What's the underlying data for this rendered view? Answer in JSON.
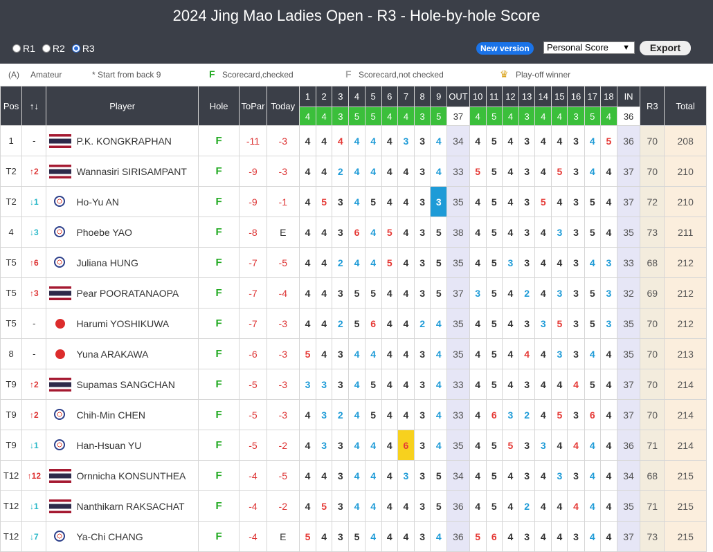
{
  "title": "2024 Jing Mao Ladies Open - R3 - Hole-by-hole Score",
  "rounds": [
    "R1",
    "R2",
    "R3"
  ],
  "selected_round": "R3",
  "new_version": "New version",
  "view_select": "Personal Score",
  "export": "Export",
  "legend": {
    "amateur_code": "(A)",
    "amateur": "Amateur",
    "back9": "* Start from back 9",
    "checked_mark": "F",
    "checked": "Scorecard,checked",
    "unchecked_mark": "F",
    "unchecked": "Scorecard,not checked",
    "playoff": "Play-off winner"
  },
  "page_size": "300s",
  "headers": {
    "pos": "Pos",
    "move": "↑↓",
    "player": "Player",
    "hole": "Hole",
    "topar": "ToPar",
    "today": "Today",
    "out": "OUT",
    "in": "IN",
    "r3": "R3",
    "total": "Total"
  },
  "holes": [
    "1",
    "2",
    "3",
    "4",
    "5",
    "6",
    "7",
    "8",
    "9",
    "10",
    "11",
    "12",
    "13",
    "14",
    "15",
    "16",
    "17",
    "18"
  ],
  "pars": [
    "4",
    "4",
    "3",
    "5",
    "5",
    "4",
    "4",
    "3",
    "5",
    "4",
    "5",
    "4",
    "3",
    "4",
    "4",
    "3",
    "5",
    "4"
  ],
  "par_out": "37",
  "par_in": "36",
  "rows": [
    {
      "pos": "1",
      "move": "-",
      "flag": "th",
      "name": "P.K. KONGKRAPHAN",
      "hole": "F",
      "topar": "-11",
      "today": "-3",
      "scores": [
        "4",
        "4",
        "4",
        "4",
        "4",
        "4",
        "3",
        "3",
        "4",
        "4",
        "5",
        "4",
        "3",
        "4",
        "4",
        "3",
        "4",
        "5"
      ],
      "out": "34",
      "in": "36",
      "r3": "70",
      "total": "208"
    },
    {
      "pos": "T2",
      "move": "+2",
      "flag": "th",
      "name": "Wannasiri SIRISAMPANT",
      "hole": "F",
      "topar": "-9",
      "today": "-3",
      "scores": [
        "4",
        "4",
        "2",
        "4",
        "4",
        "4",
        "4",
        "3",
        "4",
        "5",
        "5",
        "4",
        "3",
        "4",
        "5",
        "3",
        "4",
        "4"
      ],
      "out": "33",
      "in": "37",
      "r3": "70",
      "total": "210"
    },
    {
      "pos": "T2",
      "move": "-1",
      "flag": "ct",
      "name": "Ho-Yu AN",
      "hole": "F",
      "topar": "-9",
      "today": "-1",
      "scores": [
        "4",
        "5",
        "3",
        "4",
        "5",
        "4",
        "4",
        "3",
        "3",
        "4",
        "5",
        "4",
        "3",
        "5",
        "4",
        "3",
        "5",
        "4"
      ],
      "out": "35",
      "in": "37",
      "r3": "72",
      "total": "210"
    },
    {
      "pos": "4",
      "move": "-3",
      "flag": "ct",
      "name": "Phoebe YAO",
      "hole": "F",
      "topar": "-8",
      "today": "E",
      "scores": [
        "4",
        "4",
        "3",
        "6",
        "4",
        "5",
        "4",
        "3",
        "5",
        "4",
        "5",
        "4",
        "3",
        "4",
        "3",
        "3",
        "5",
        "4"
      ],
      "out": "38",
      "in": "35",
      "r3": "73",
      "total": "211"
    },
    {
      "pos": "T5",
      "move": "+6",
      "flag": "ct",
      "name": "Juliana HUNG",
      "hole": "F",
      "topar": "-7",
      "today": "-5",
      "scores": [
        "4",
        "4",
        "2",
        "4",
        "4",
        "5",
        "4",
        "3",
        "5",
        "4",
        "5",
        "3",
        "3",
        "4",
        "4",
        "3",
        "4",
        "3"
      ],
      "out": "35",
      "in": "33",
      "r3": "68",
      "total": "212"
    },
    {
      "pos": "T5",
      "move": "+3",
      "flag": "th",
      "name": "Pear POORATANAOPA",
      "hole": "F",
      "topar": "-7",
      "today": "-4",
      "scores": [
        "4",
        "4",
        "3",
        "5",
        "5",
        "4",
        "4",
        "3",
        "5",
        "3",
        "5",
        "4",
        "2",
        "4",
        "3",
        "3",
        "5",
        "3"
      ],
      "out": "37",
      "in": "32",
      "r3": "69",
      "total": "212"
    },
    {
      "pos": "T5",
      "move": "-",
      "flag": "jp",
      "name": "Harumi YOSHIKUWA",
      "hole": "F",
      "topar": "-7",
      "today": "-3",
      "scores": [
        "4",
        "4",
        "2",
        "5",
        "6",
        "4",
        "4",
        "2",
        "4",
        "4",
        "5",
        "4",
        "3",
        "3",
        "5",
        "3",
        "5",
        "3"
      ],
      "out": "35",
      "in": "35",
      "r3": "70",
      "total": "212"
    },
    {
      "pos": "8",
      "move": "-",
      "flag": "jp",
      "name": "Yuna ARAKAWA",
      "hole": "F",
      "topar": "-6",
      "today": "-3",
      "scores": [
        "5",
        "4",
        "3",
        "4",
        "4",
        "4",
        "4",
        "3",
        "4",
        "4",
        "5",
        "4",
        "4",
        "4",
        "3",
        "3",
        "4",
        "4"
      ],
      "out": "35",
      "in": "35",
      "r3": "70",
      "total": "213"
    },
    {
      "pos": "T9",
      "move": "+2",
      "flag": "th",
      "name": "Supamas SANGCHAN",
      "hole": "F",
      "topar": "-5",
      "today": "-3",
      "scores": [
        "3",
        "3",
        "3",
        "4",
        "5",
        "4",
        "4",
        "3",
        "4",
        "4",
        "5",
        "4",
        "3",
        "4",
        "4",
        "4",
        "5",
        "4"
      ],
      "out": "33",
      "in": "37",
      "r3": "70",
      "total": "214"
    },
    {
      "pos": "T9",
      "move": "+2",
      "flag": "ct",
      "name": "Chih-Min CHEN",
      "hole": "F",
      "topar": "-5",
      "today": "-3",
      "scores": [
        "4",
        "3",
        "2",
        "4",
        "5",
        "4",
        "4",
        "3",
        "4",
        "4",
        "6",
        "3",
        "2",
        "4",
        "5",
        "3",
        "6",
        "4"
      ],
      "out": "33",
      "in": "37",
      "r3": "70",
      "total": "214"
    },
    {
      "pos": "T9",
      "move": "-1",
      "flag": "ct",
      "name": "Han-Hsuan YU",
      "hole": "F",
      "topar": "-5",
      "today": "-2",
      "scores": [
        "4",
        "3",
        "3",
        "4",
        "4",
        "4",
        "6",
        "3",
        "4",
        "4",
        "5",
        "5",
        "3",
        "3",
        "4",
        "4",
        "4",
        "4"
      ],
      "out": "35",
      "in": "36",
      "r3": "71",
      "total": "214"
    },
    {
      "pos": "T12",
      "move": "+12",
      "flag": "th",
      "name": "Ornnicha KONSUNTHEA",
      "hole": "F",
      "topar": "-4",
      "today": "-5",
      "scores": [
        "4",
        "4",
        "3",
        "4",
        "4",
        "4",
        "3",
        "3",
        "5",
        "4",
        "5",
        "4",
        "3",
        "4",
        "3",
        "3",
        "4",
        "4"
      ],
      "out": "34",
      "in": "34",
      "r3": "68",
      "total": "215"
    },
    {
      "pos": "T12",
      "move": "-1",
      "flag": "th",
      "name": "Nanthikarn RAKSACHAT",
      "hole": "F",
      "topar": "-4",
      "today": "-2",
      "scores": [
        "4",
        "5",
        "3",
        "4",
        "4",
        "4",
        "4",
        "3",
        "5",
        "4",
        "5",
        "4",
        "2",
        "4",
        "4",
        "4",
        "4",
        "4"
      ],
      "out": "36",
      "in": "35",
      "r3": "71",
      "total": "215"
    },
    {
      "pos": "T12",
      "move": "-7",
      "flag": "ct",
      "name": "Ya-Chi CHANG",
      "hole": "F",
      "topar": "-4",
      "today": "E",
      "scores": [
        "5",
        "4",
        "3",
        "5",
        "4",
        "4",
        "4",
        "3",
        "4",
        "5",
        "6",
        "4",
        "3",
        "4",
        "4",
        "3",
        "4",
        "4"
      ],
      "out": "36",
      "in": "37",
      "r3": "73",
      "total": "215"
    }
  ]
}
